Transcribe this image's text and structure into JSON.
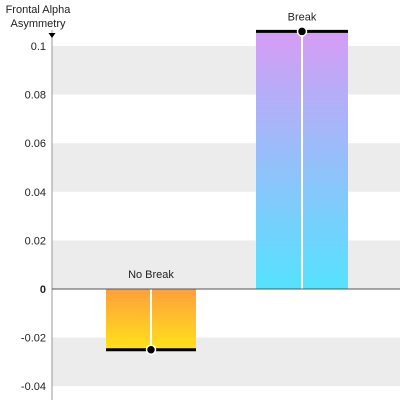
{
  "chart_data": {
    "type": "bar",
    "title": "",
    "ylabel": "Frontal Alpha Asymmetry",
    "xlabel": "",
    "ylim": [
      -0.042,
      0.108
    ],
    "yticks": [
      0.1,
      0.08,
      0.06,
      0.04,
      0.02,
      0,
      -0.02,
      -0.04
    ],
    "ytick_labels": [
      "0.1",
      "0.08",
      "0.06",
      "0.04",
      "0.02",
      "0",
      "-0.02",
      "-0.04"
    ],
    "grid": "alternating horizontal bands",
    "categories": [
      "No Break",
      "Break"
    ],
    "values": [
      -0.025,
      0.106
    ],
    "colors": {
      "No Break": {
        "top": "#ff9f3b",
        "bottom": "#ffe21a"
      },
      "Break": {
        "top": "#d69cf5",
        "bottom": "#55e2ff"
      },
      "band": "#ececec",
      "mean_line": "#000000",
      "axis": "#999999"
    }
  }
}
